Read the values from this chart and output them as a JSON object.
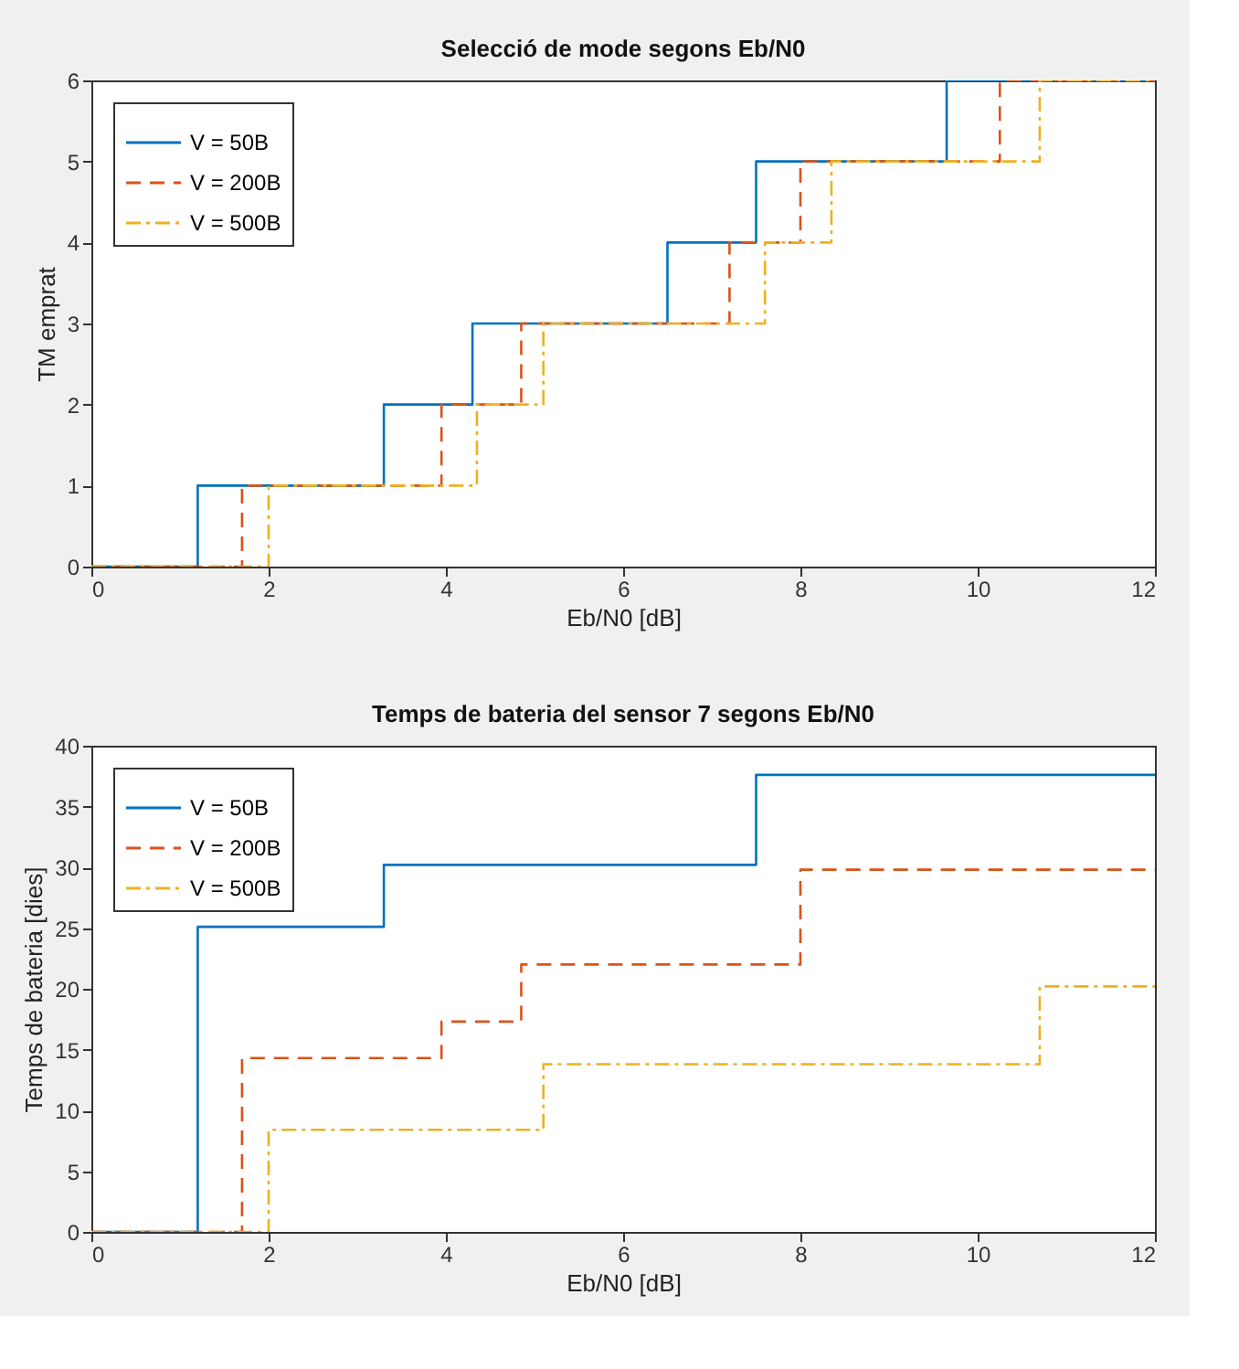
{
  "chart_data": [
    {
      "type": "step",
      "title": "Selecció de mode segons Eb/N0",
      "xlabel": "Eb/N0 [dB]",
      "ylabel": "TM emprat",
      "xlim": [
        0,
        12
      ],
      "xticks": [
        0,
        2,
        4,
        6,
        8,
        10,
        12
      ],
      "ylim": [
        0,
        6
      ],
      "yticks": [
        0,
        1,
        2,
        3,
        4,
        5,
        6
      ],
      "grid": false,
      "legend": "top left",
      "series": [
        {
          "name": "V = 50B",
          "color": "#0072bd",
          "line_style": "solid",
          "x": [
            0,
            1.2,
            3.3,
            4.3,
            6.5,
            7.5,
            9.65,
            12
          ],
          "values": [
            0,
            1,
            2,
            3,
            4,
            5,
            6,
            6
          ]
        },
        {
          "name": "V = 200B",
          "color": "#d95319",
          "line_style": "dashed",
          "x": [
            0,
            1.7,
            3.95,
            4.85,
            7.2,
            8.0,
            10.25,
            12
          ],
          "values": [
            0,
            1,
            2,
            3,
            4,
            5,
            6,
            6
          ]
        },
        {
          "name": "V = 500B",
          "color": "#edb120",
          "line_style": "dashdot",
          "x": [
            0,
            2.0,
            4.35,
            5.1,
            7.6,
            8.35,
            10.7,
            12
          ],
          "values": [
            0,
            1,
            2,
            3,
            4,
            5,
            6,
            6
          ]
        }
      ]
    },
    {
      "type": "step",
      "title": "Temps de bateria del sensor 7 segons Eb/N0",
      "xlabel": "Eb/N0 [dB]",
      "ylabel": "Temps de bateria [dies]",
      "xlim": [
        0,
        12
      ],
      "xticks": [
        0,
        2,
        4,
        6,
        8,
        10,
        12
      ],
      "ylim": [
        0,
        40
      ],
      "yticks": [
        0,
        5,
        10,
        15,
        20,
        25,
        30,
        35,
        40
      ],
      "grid": false,
      "legend": "top left",
      "series": [
        {
          "name": "V = 50B",
          "color": "#0072bd",
          "line_style": "solid",
          "x": [
            0,
            1.2,
            3.3,
            7.5,
            12
          ],
          "values": [
            0,
            25.1,
            30.2,
            37.6,
            37.6
          ]
        },
        {
          "name": "V = 200B",
          "color": "#d95319",
          "line_style": "dashed",
          "x": [
            0,
            1.7,
            3.95,
            4.85,
            8.0,
            12
          ],
          "values": [
            0,
            14.3,
            17.3,
            22,
            29.8,
            29.8
          ]
        },
        {
          "name": "V = 500B",
          "color": "#edb120",
          "line_style": "dashdot",
          "x": [
            0,
            2.0,
            5.1,
            10.7,
            12
          ],
          "values": [
            0,
            8.4,
            13.8,
            20.2,
            20.2
          ]
        }
      ]
    }
  ]
}
